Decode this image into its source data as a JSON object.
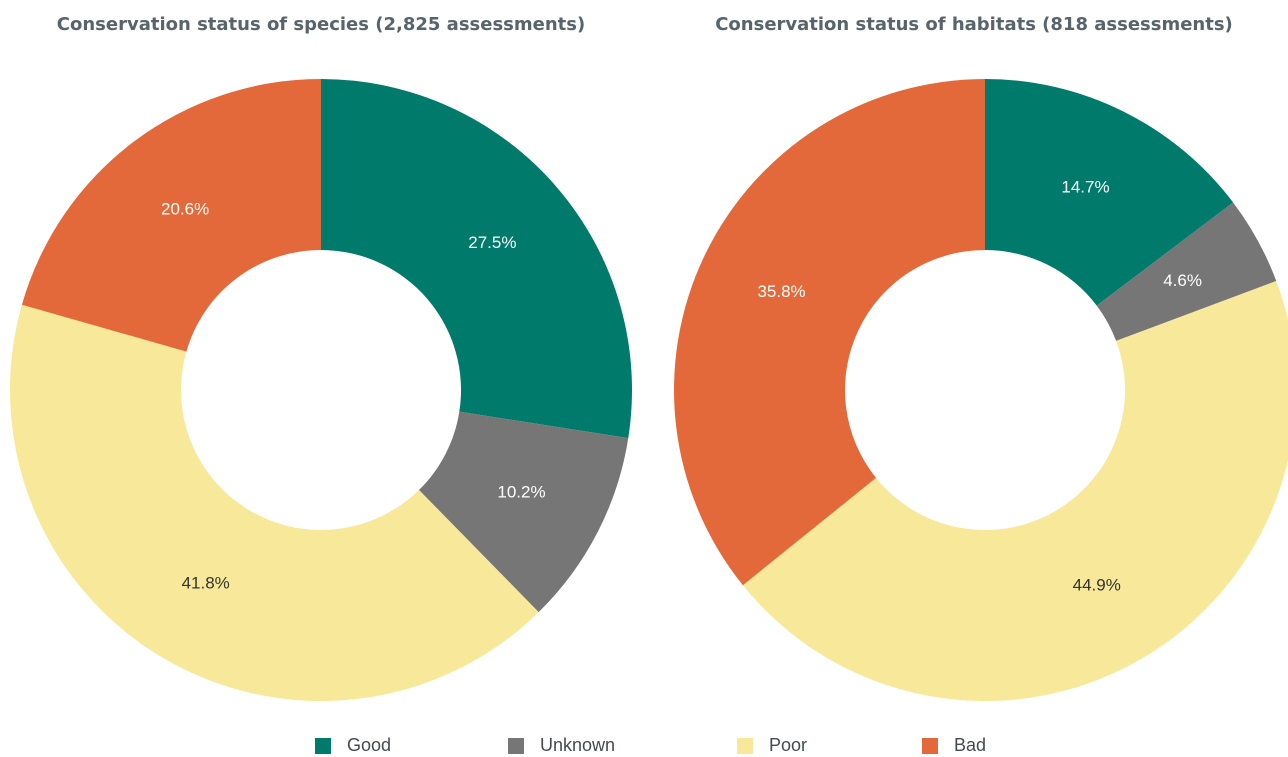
{
  "categories": [
    "Good",
    "Unknown",
    "Poor",
    "Bad"
  ],
  "colors": {
    "Good": "#007a6b",
    "Unknown": "#767676",
    "Poor": "#f8e89a",
    "Bad": "#e3693a"
  },
  "label_colors": {
    "Good": "#ffffff",
    "Unknown": "#ffffff",
    "Poor": "#333333",
    "Bad": "#ffffff"
  },
  "legend": {
    "items": [
      {
        "label": "Good",
        "color": "#007a6b"
      },
      {
        "label": "Unknown",
        "color": "#767676"
      },
      {
        "label": "Poor",
        "color": "#f8e89a"
      },
      {
        "label": "Bad",
        "color": "#e3693a"
      }
    ]
  },
  "chart_data": [
    {
      "type": "pie",
      "variant": "donut",
      "title": "Conservation status of species (2,825 assessments)",
      "categories": [
        "Good",
        "Unknown",
        "Poor",
        "Bad"
      ],
      "values": [
        27.5,
        10.2,
        41.8,
        20.6
      ],
      "labels": [
        "27.5%",
        "10.2%",
        "41.8%",
        "20.6%"
      ],
      "start": "12 o'clock, clockwise",
      "legend": "bottom"
    },
    {
      "type": "pie",
      "variant": "donut",
      "title": "Conservation status of habitats (818 assessments)",
      "categories": [
        "Good",
        "Unknown",
        "Poor",
        "Bad"
      ],
      "values": [
        14.7,
        4.6,
        44.9,
        35.8
      ],
      "labels": [
        "14.7%",
        "4.6%",
        "44.9%",
        "35.8%"
      ],
      "start": "12 o'clock, clockwise",
      "legend": "bottom"
    }
  ]
}
